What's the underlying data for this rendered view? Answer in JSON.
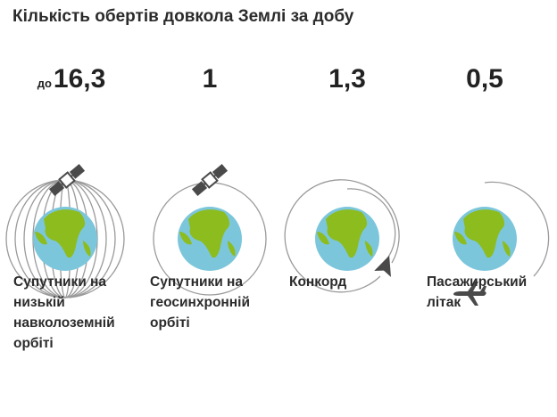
{
  "title": "Кількість обертів довкола Землі за добу",
  "colors": {
    "ocean": "#7cc6dc",
    "land": "#8cbc1e",
    "orbit": "#9a9a9a",
    "craft": "#4a4a4a"
  },
  "items": [
    {
      "prefix": "до",
      "value": "16,3",
      "label_lines": [
        "Супутники на",
        "низькій",
        "навколоземній",
        "орбіті"
      ],
      "icon": "satellite-icon"
    },
    {
      "prefix": "",
      "value": "1",
      "label_lines": [
        "Супутники на",
        "геосинхронній",
        "орбіті"
      ],
      "icon": "satellite-icon"
    },
    {
      "prefix": "",
      "value": "1,3",
      "label_lines": [
        "Конкорд"
      ],
      "icon": "concorde-icon"
    },
    {
      "prefix": "",
      "value": "0,5",
      "label_lines": [
        "Пасажирський",
        "літак"
      ],
      "icon": "airplane-icon"
    }
  ]
}
